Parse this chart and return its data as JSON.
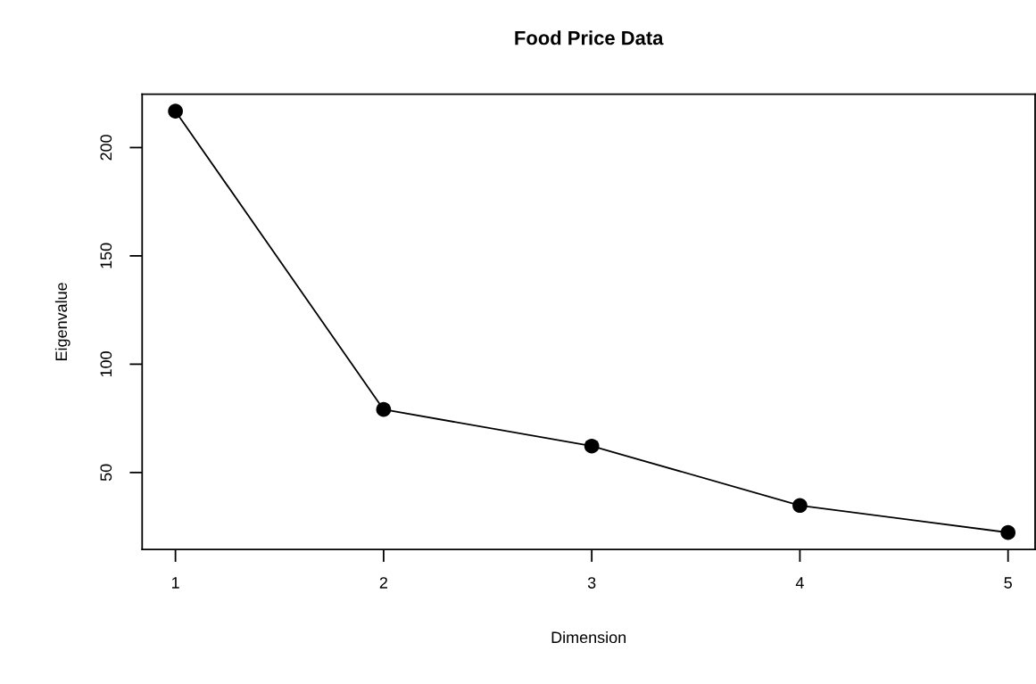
{
  "chart_data": {
    "type": "line",
    "title": "Food Price Data",
    "xlabel": "Dimension",
    "ylabel": "Eigenvalue",
    "x": [
      1,
      2,
      3,
      4,
      5
    ],
    "series": [
      {
        "color": "#000000",
        "values": [
          216.8,
          79.1,
          62.2,
          34.8,
          22.3
        ]
      }
    ],
    "xlim": [
      0.84,
      5.13
    ],
    "xticks": [
      1,
      2,
      3,
      4,
      5
    ],
    "ylim": [
      14.5,
      224.6
    ],
    "yticks": [
      50,
      100,
      150,
      200
    ],
    "marker": "circle",
    "line_style": "solid",
    "grid": false,
    "legend": false
  }
}
